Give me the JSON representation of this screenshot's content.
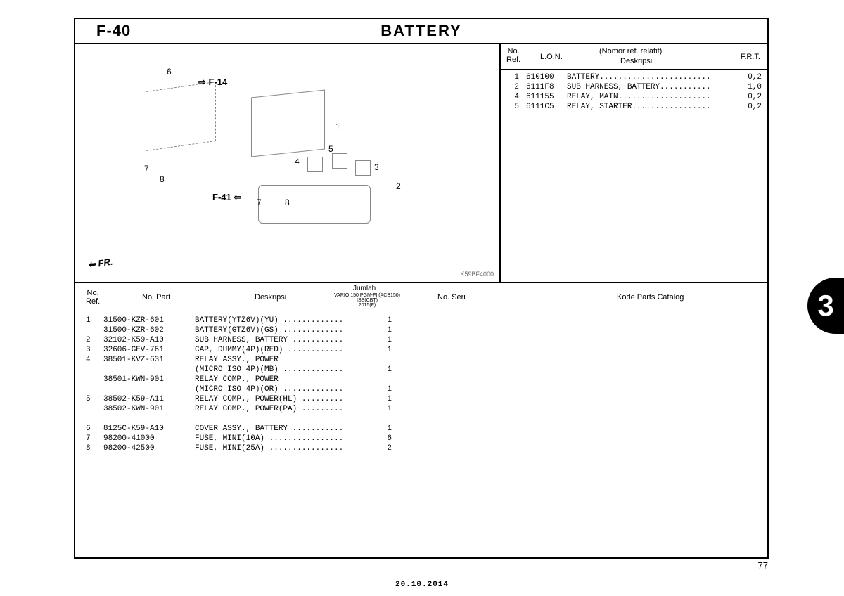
{
  "header": {
    "section_code": "F-40",
    "section_title": "BATTERY"
  },
  "diagram": {
    "ref_f14": "F-14",
    "ref_f41": "F-41",
    "fr_label": "FR.",
    "drawing_code": "K59BF4000",
    "callouts": {
      "c1": "1",
      "c2": "2",
      "c3": "3",
      "c4": "4",
      "c5": "5",
      "c6": "6",
      "c7": "7",
      "c8": "8",
      "c7b": "7",
      "c8b": "8"
    }
  },
  "ref_table": {
    "headers": {
      "no_ref": "No.\nRef.",
      "lon": "L.O.N.",
      "nomor": "(Nomor ref. relatif)",
      "deskripsi": "Deskripsi",
      "frt": "F.R.T."
    },
    "rows": [
      {
        "no": "1",
        "lon": "610100",
        "desc": "BATTERY........................",
        "frt": "0,2"
      },
      {
        "no": "2",
        "lon": "6111F8",
        "desc": "SUB HARNESS, BATTERY...........",
        "frt": "1,0"
      },
      {
        "no": "4",
        "lon": "611155",
        "desc": "RELAY, MAIN....................",
        "frt": "0,2"
      },
      {
        "no": "5",
        "lon": "6111C5",
        "desc": "RELAY, STARTER.................",
        "frt": "0,2"
      }
    ]
  },
  "parts_table": {
    "headers": {
      "no_ref": "No.\nRef.",
      "no_part": "No. Part",
      "deskripsi": "Deskripsi",
      "jumlah": "Jumlah",
      "model": "VARIO 150 PGM-FI (ACB150)\nISS(CBT)\n2015(F)",
      "no_seri": "No. Seri",
      "kode": "Kode Parts Catalog"
    },
    "rows": [
      {
        "no": "1",
        "part": "31500-KZR-601",
        "desc": "BATTERY(YTZ6V)(YU) .............",
        "qty": "1"
      },
      {
        "no": "",
        "part": "31500-KZR-602",
        "desc": "BATTERY(GTZ6V)(GS) .............",
        "qty": "1"
      },
      {
        "no": "2",
        "part": "32102-K59-A10",
        "desc": "SUB HARNESS, BATTERY ...........",
        "qty": "1"
      },
      {
        "no": "3",
        "part": "32606-GEV-761",
        "desc": "CAP, DUMMY(4P)(RED) ............",
        "qty": "1"
      },
      {
        "no": "4",
        "part": "38501-KVZ-631",
        "desc": "RELAY ASSY., POWER",
        "qty": ""
      },
      {
        "no": "",
        "part": "",
        "desc": "(MICRO ISO 4P)(MB) .............",
        "qty": "1"
      },
      {
        "no": "",
        "part": "38501-KWN-901",
        "desc": "RELAY COMP., POWER",
        "qty": ""
      },
      {
        "no": "",
        "part": "",
        "desc": "(MICRO ISO 4P)(OR) .............",
        "qty": "1"
      },
      {
        "no": "5",
        "part": "38502-K59-A11",
        "desc": "RELAY COMP., POWER(HL) .........",
        "qty": "1"
      },
      {
        "no": "",
        "part": "38502-KWN-901",
        "desc": "RELAY COMP., POWER(PA) .........",
        "qty": "1"
      }
    ],
    "rows_after_gap": [
      {
        "no": "6",
        "part": "8125C-K59-A10",
        "desc": "COVER ASSY., BATTERY ...........",
        "qty": "1"
      },
      {
        "no": "7",
        "part": "98200-41000",
        "desc": "FUSE, MINI(10A) ................",
        "qty": "6"
      },
      {
        "no": "8",
        "part": "98200-42500",
        "desc": "FUSE, MINI(25A) ................",
        "qty": "2"
      }
    ]
  },
  "section_tab": "3",
  "page_number": "77",
  "footer_date": "20.10.2014"
}
